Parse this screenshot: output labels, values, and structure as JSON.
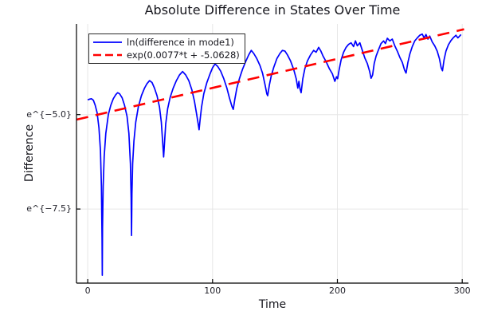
{
  "chart": {
    "title": "Absolute Difference in States Over Time",
    "xlabel": "Time",
    "ylabel": "Difference"
  },
  "chart_data": {
    "type": "line",
    "title": "Absolute Difference in States Over Time",
    "xlabel": "Time",
    "ylabel": "Difference",
    "y_scale": "ln (tick labels rendered as e^{v})",
    "xlim": [
      -9,
      305
    ],
    "ylim": [
      -9.46,
      -2.6
    ],
    "grid": true,
    "grid_color": "#e6e6e6",
    "axis_color": "#000000",
    "text_color": "#1f1f28",
    "legend_position": "top-left",
    "x_ticks": [
      {
        "value": 0,
        "label": "0"
      },
      {
        "value": 100,
        "label": "100"
      },
      {
        "value": 200,
        "label": "200"
      },
      {
        "value": 300,
        "label": "300"
      }
    ],
    "y_ticks": [
      {
        "value": -5.0,
        "label": "e^{−5.0}"
      },
      {
        "value": -7.5,
        "label": "e^{−7.5}"
      }
    ],
    "series": [
      {
        "name": "ln(difference in mode1)",
        "color": "#0000ff",
        "style": "solid",
        "width": 1.7,
        "points": [
          [
            0,
            -4.61
          ],
          [
            1.5,
            -4.59
          ],
          [
            3,
            -4.58
          ],
          [
            4.5,
            -4.62
          ],
          [
            6,
            -4.75
          ],
          [
            7.5,
            -4.95
          ],
          [
            9,
            -5.35
          ],
          [
            10.2,
            -5.95
          ],
          [
            11,
            -6.9
          ],
          [
            11.5,
            -8.3
          ],
          [
            11.7,
            -9.25
          ],
          [
            11.9,
            -8.0
          ],
          [
            12.4,
            -6.9
          ],
          [
            13.2,
            -6.1
          ],
          [
            14.5,
            -5.5
          ],
          [
            16.5,
            -5.0
          ],
          [
            18.5,
            -4.75
          ],
          [
            20.5,
            -4.58
          ],
          [
            22.5,
            -4.47
          ],
          [
            24,
            -4.42
          ],
          [
            25.5,
            -4.45
          ],
          [
            27.5,
            -4.55
          ],
          [
            29.5,
            -4.75
          ],
          [
            31.5,
            -5.05
          ],
          [
            33,
            -5.5
          ],
          [
            34.2,
            -6.3
          ],
          [
            34.8,
            -7.2
          ],
          [
            35.1,
            -8.2
          ],
          [
            35.4,
            -7.1
          ],
          [
            36,
            -6.3
          ],
          [
            37,
            -5.7
          ],
          [
            38.5,
            -5.2
          ],
          [
            40.5,
            -4.8
          ],
          [
            43,
            -4.5
          ],
          [
            45.5,
            -4.3
          ],
          [
            47.5,
            -4.18
          ],
          [
            49.5,
            -4.1
          ],
          [
            51.5,
            -4.15
          ],
          [
            53.5,
            -4.3
          ],
          [
            55.5,
            -4.5
          ],
          [
            57.5,
            -4.8
          ],
          [
            59,
            -5.2
          ],
          [
            60,
            -5.7
          ],
          [
            60.8,
            -6.12
          ],
          [
            61.5,
            -5.75
          ],
          [
            62.5,
            -5.25
          ],
          [
            64,
            -4.85
          ],
          [
            66,
            -4.55
          ],
          [
            68.5,
            -4.3
          ],
          [
            71,
            -4.1
          ],
          [
            73.5,
            -3.95
          ],
          [
            76,
            -3.86
          ],
          [
            78.5,
            -3.95
          ],
          [
            81,
            -4.1
          ],
          [
            83.5,
            -4.35
          ],
          [
            85.5,
            -4.65
          ],
          [
            87.3,
            -5.0
          ],
          [
            88.5,
            -5.25
          ],
          [
            89.2,
            -5.4
          ],
          [
            90,
            -5.15
          ],
          [
            91.2,
            -4.8
          ],
          [
            93,
            -4.45
          ],
          [
            95.5,
            -4.15
          ],
          [
            98,
            -3.92
          ],
          [
            100,
            -3.76
          ],
          [
            102,
            -3.66
          ],
          [
            104,
            -3.72
          ],
          [
            106.5,
            -3.85
          ],
          [
            109,
            -4.05
          ],
          [
            111.5,
            -4.3
          ],
          [
            113.5,
            -4.55
          ],
          [
            115.5,
            -4.78
          ],
          [
            116.6,
            -4.86
          ],
          [
            117.8,
            -4.6
          ],
          [
            119.5,
            -4.3
          ],
          [
            121.5,
            -4.05
          ],
          [
            124,
            -3.8
          ],
          [
            126.5,
            -3.6
          ],
          [
            129,
            -3.42
          ],
          [
            131,
            -3.3
          ],
          [
            133,
            -3.38
          ],
          [
            135.5,
            -3.52
          ],
          [
            138,
            -3.7
          ],
          [
            140,
            -3.9
          ],
          [
            142,
            -4.2
          ],
          [
            143.5,
            -4.45
          ],
          [
            144.2,
            -4.5
          ],
          [
            145.5,
            -4.22
          ],
          [
            147,
            -3.98
          ],
          [
            149,
            -3.75
          ],
          [
            151.5,
            -3.52
          ],
          [
            154,
            -3.38
          ],
          [
            156,
            -3.3
          ],
          [
            158,
            -3.32
          ],
          [
            160,
            -3.42
          ],
          [
            162.5,
            -3.58
          ],
          [
            165,
            -3.8
          ],
          [
            167,
            -4.05
          ],
          [
            168.3,
            -4.3
          ],
          [
            169.2,
            -4.12
          ],
          [
            170.1,
            -4.32
          ],
          [
            171,
            -4.42
          ],
          [
            172.3,
            -4.05
          ],
          [
            174,
            -3.78
          ],
          [
            176,
            -3.58
          ],
          [
            178.5,
            -3.42
          ],
          [
            181,
            -3.3
          ],
          [
            183,
            -3.35
          ],
          [
            185,
            -3.22
          ],
          [
            186.8,
            -3.32
          ],
          [
            188.5,
            -3.45
          ],
          [
            191,
            -3.6
          ],
          [
            193.5,
            -3.78
          ],
          [
            196,
            -3.92
          ],
          [
            198,
            -4.12
          ],
          [
            199.3,
            -4.0
          ],
          [
            200.2,
            -4.05
          ],
          [
            201.5,
            -3.8
          ],
          [
            203,
            -3.55
          ],
          [
            205,
            -3.35
          ],
          [
            207,
            -3.22
          ],
          [
            209,
            -3.14
          ],
          [
            211,
            -3.1
          ],
          [
            213,
            -3.2
          ],
          [
            214.5,
            -3.05
          ],
          [
            216,
            -3.18
          ],
          [
            218,
            -3.1
          ],
          [
            220,
            -3.3
          ],
          [
            222,
            -3.5
          ],
          [
            224,
            -3.65
          ],
          [
            225.8,
            -3.85
          ],
          [
            227,
            -4.04
          ],
          [
            228.2,
            -3.95
          ],
          [
            229.5,
            -3.65
          ],
          [
            231,
            -3.45
          ],
          [
            233,
            -3.28
          ],
          [
            235,
            -3.12
          ],
          [
            237,
            -3.05
          ],
          [
            238.5,
            -3.12
          ],
          [
            240,
            -2.98
          ],
          [
            242,
            -3.05
          ],
          [
            244,
            -3.0
          ],
          [
            246,
            -3.18
          ],
          [
            248,
            -3.32
          ],
          [
            250,
            -3.48
          ],
          [
            252,
            -3.62
          ],
          [
            253.8,
            -3.82
          ],
          [
            255,
            -3.9
          ],
          [
            256.5,
            -3.62
          ],
          [
            258,
            -3.4
          ],
          [
            260,
            -3.2
          ],
          [
            262,
            -3.05
          ],
          [
            264,
            -2.97
          ],
          [
            266,
            -2.9
          ],
          [
            268,
            -2.87
          ],
          [
            269.5,
            -2.97
          ],
          [
            271,
            -2.88
          ],
          [
            272.5,
            -3.0
          ],
          [
            274,
            -2.92
          ],
          [
            276,
            -3.08
          ],
          [
            278,
            -3.18
          ],
          [
            280,
            -3.32
          ],
          [
            281.8,
            -3.52
          ],
          [
            283.2,
            -3.76
          ],
          [
            284.2,
            -3.84
          ],
          [
            285.5,
            -3.55
          ],
          [
            287,
            -3.32
          ],
          [
            289,
            -3.15
          ],
          [
            291,
            -3.04
          ],
          [
            293,
            -2.96
          ],
          [
            295,
            -2.9
          ],
          [
            296.5,
            -2.97
          ],
          [
            298,
            -2.92
          ],
          [
            299,
            -2.88
          ]
        ]
      },
      {
        "name": "exp(0.0077*t + -5.0628)",
        "color": "#ff0000",
        "style": "dashed",
        "width": 2.6,
        "fit": {
          "slope": 0.0077,
          "intercept": -5.0628
        },
        "points": [
          [
            -9,
            -5.132
          ],
          [
            301.5,
            -2.741
          ]
        ]
      }
    ]
  }
}
